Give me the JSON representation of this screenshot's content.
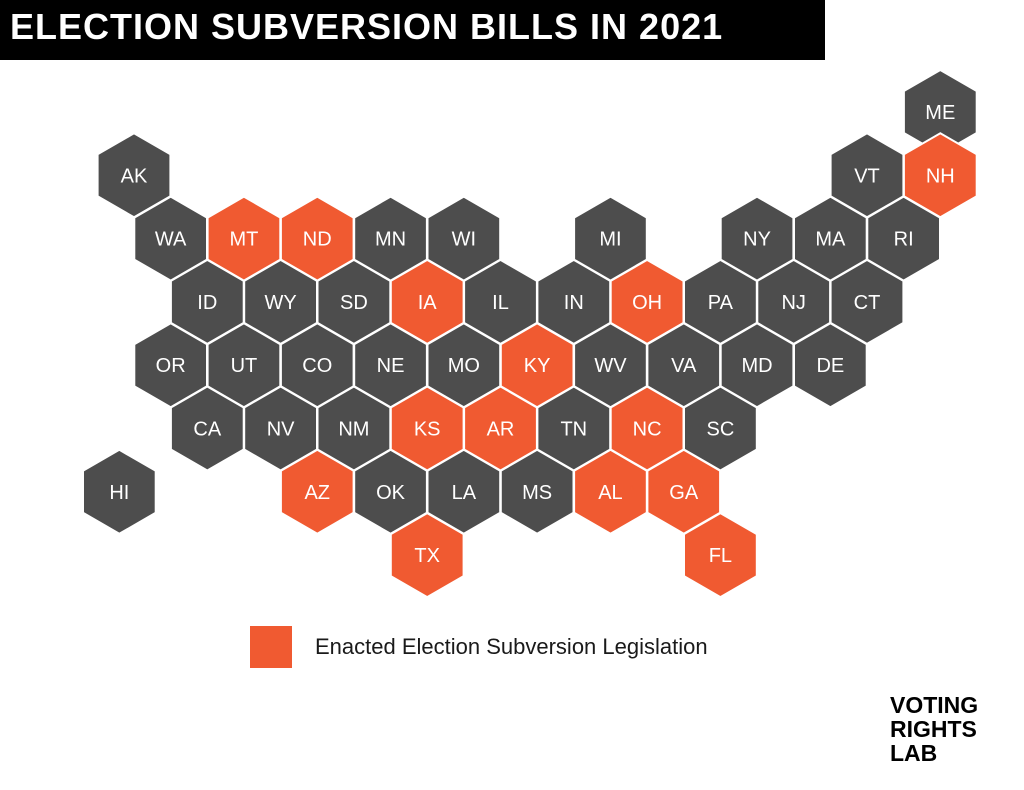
{
  "title": "ELECTION SUBVERSION BILLS IN 2021",
  "colors": {
    "enacted": "#f05a31",
    "default": "#4d4d4d",
    "label": "#ffffff",
    "title_bg": "#000000",
    "border": "#ffffff"
  },
  "legend": {
    "label": "Enacted Election Subversion Legislation"
  },
  "logo": {
    "line1": "VOTING",
    "line2": "RIGHTS",
    "line3": "LAB"
  },
  "states": [
    {
      "code": "ME",
      "row": 0,
      "col": 11.0,
      "enacted": false
    },
    {
      "code": "AK",
      "row": 1,
      "col": 0.0,
      "enacted": false
    },
    {
      "code": "VT",
      "row": 1,
      "col": 10.0,
      "enacted": false
    },
    {
      "code": "NH",
      "row": 1,
      "col": 11.0,
      "enacted": true
    },
    {
      "code": "WA",
      "row": 2,
      "col": 0.5,
      "enacted": false
    },
    {
      "code": "MT",
      "row": 2,
      "col": 1.5,
      "enacted": true
    },
    {
      "code": "ND",
      "row": 2,
      "col": 2.5,
      "enacted": true
    },
    {
      "code": "MN",
      "row": 2,
      "col": 3.5,
      "enacted": false
    },
    {
      "code": "WI",
      "row": 2,
      "col": 4.5,
      "enacted": false
    },
    {
      "code": "MI",
      "row": 2,
      "col": 6.5,
      "enacted": false
    },
    {
      "code": "NY",
      "row": 2,
      "col": 8.5,
      "enacted": false
    },
    {
      "code": "MA",
      "row": 2,
      "col": 9.5,
      "enacted": false
    },
    {
      "code": "RI",
      "row": 2,
      "col": 10.5,
      "enacted": false
    },
    {
      "code": "ID",
      "row": 3,
      "col": 1.0,
      "enacted": false
    },
    {
      "code": "WY",
      "row": 3,
      "col": 2.0,
      "enacted": false
    },
    {
      "code": "SD",
      "row": 3,
      "col": 3.0,
      "enacted": false
    },
    {
      "code": "IA",
      "row": 3,
      "col": 4.0,
      "enacted": true
    },
    {
      "code": "IL",
      "row": 3,
      "col": 5.0,
      "enacted": false
    },
    {
      "code": "IN",
      "row": 3,
      "col": 6.0,
      "enacted": false
    },
    {
      "code": "OH",
      "row": 3,
      "col": 7.0,
      "enacted": true
    },
    {
      "code": "PA",
      "row": 3,
      "col": 8.0,
      "enacted": false
    },
    {
      "code": "NJ",
      "row": 3,
      "col": 9.0,
      "enacted": false
    },
    {
      "code": "CT",
      "row": 3,
      "col": 10.0,
      "enacted": false
    },
    {
      "code": "OR",
      "row": 4,
      "col": 0.5,
      "enacted": false
    },
    {
      "code": "UT",
      "row": 4,
      "col": 1.5,
      "enacted": false
    },
    {
      "code": "CO",
      "row": 4,
      "col": 2.5,
      "enacted": false
    },
    {
      "code": "NE",
      "row": 4,
      "col": 3.5,
      "enacted": false
    },
    {
      "code": "MO",
      "row": 4,
      "col": 4.5,
      "enacted": false
    },
    {
      "code": "KY",
      "row": 4,
      "col": 5.5,
      "enacted": true
    },
    {
      "code": "WV",
      "row": 4,
      "col": 6.5,
      "enacted": false
    },
    {
      "code": "VA",
      "row": 4,
      "col": 7.5,
      "enacted": false
    },
    {
      "code": "MD",
      "row": 4,
      "col": 8.5,
      "enacted": false
    },
    {
      "code": "DE",
      "row": 4,
      "col": 9.5,
      "enacted": false
    },
    {
      "code": "CA",
      "row": 5,
      "col": 1.0,
      "enacted": false
    },
    {
      "code": "NV",
      "row": 5,
      "col": 2.0,
      "enacted": false
    },
    {
      "code": "NM",
      "row": 5,
      "col": 3.0,
      "enacted": false
    },
    {
      "code": "KS",
      "row": 5,
      "col": 4.0,
      "enacted": true
    },
    {
      "code": "AR",
      "row": 5,
      "col": 5.0,
      "enacted": true
    },
    {
      "code": "TN",
      "row": 5,
      "col": 6.0,
      "enacted": false
    },
    {
      "code": "NC",
      "row": 5,
      "col": 7.0,
      "enacted": true
    },
    {
      "code": "SC",
      "row": 5,
      "col": 8.0,
      "enacted": false
    },
    {
      "code": "HI",
      "row": 6,
      "col": -0.2,
      "enacted": false
    },
    {
      "code": "AZ",
      "row": 6,
      "col": 2.5,
      "enacted": true
    },
    {
      "code": "OK",
      "row": 6,
      "col": 3.5,
      "enacted": false
    },
    {
      "code": "LA",
      "row": 6,
      "col": 4.5,
      "enacted": false
    },
    {
      "code": "MS",
      "row": 6,
      "col": 5.5,
      "enacted": false
    },
    {
      "code": "AL",
      "row": 6,
      "col": 6.5,
      "enacted": true
    },
    {
      "code": "GA",
      "row": 6,
      "col": 7.5,
      "enacted": true
    },
    {
      "code": "TX",
      "row": 7,
      "col": 4.0,
      "enacted": true
    },
    {
      "code": "FL",
      "row": 7,
      "col": 8.0,
      "enacted": true
    }
  ]
}
